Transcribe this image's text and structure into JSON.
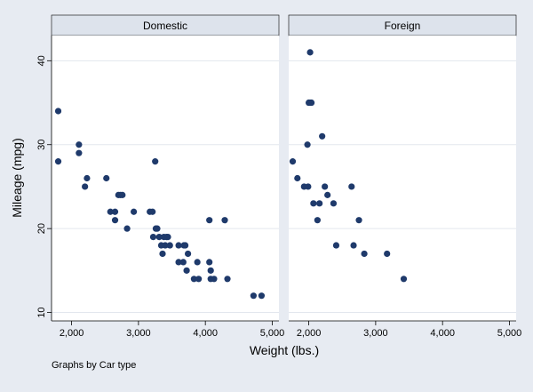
{
  "chart_data": {
    "type": "scatter",
    "xlabel": "Weight (lbs.)",
    "ylabel": "Mileage (mpg)",
    "note": "Graphs by Car type",
    "xlim": [
      1700,
      5100
    ],
    "ylim": [
      9,
      43
    ],
    "x_ticks": [
      {
        "value": 2000,
        "label": "2,000"
      },
      {
        "value": 3000,
        "label": "3,000"
      },
      {
        "value": 4000,
        "label": "4,000"
      },
      {
        "value": 5000,
        "label": "5,000"
      }
    ],
    "y_ticks": [
      {
        "value": 10,
        "label": "10"
      },
      {
        "value": 20,
        "label": "20"
      },
      {
        "value": 30,
        "label": "30"
      },
      {
        "value": 40,
        "label": "40"
      }
    ],
    "grid": true,
    "marker_color": "#1f3a6b",
    "panels": [
      {
        "title": "Domestic",
        "points": [
          [
            1800,
            34
          ],
          [
            1800,
            28
          ],
          [
            2110,
            30
          ],
          [
            2110,
            29
          ],
          [
            2200,
            25
          ],
          [
            2230,
            26
          ],
          [
            2520,
            26
          ],
          [
            2580,
            22
          ],
          [
            2650,
            22
          ],
          [
            2650,
            21
          ],
          [
            2700,
            24
          ],
          [
            2730,
            24
          ],
          [
            2760,
            24
          ],
          [
            2830,
            20
          ],
          [
            2930,
            22
          ],
          [
            3170,
            22
          ],
          [
            3210,
            22
          ],
          [
            3220,
            19
          ],
          [
            3250,
            28
          ],
          [
            3260,
            20
          ],
          [
            3280,
            20
          ],
          [
            3310,
            19
          ],
          [
            3340,
            18
          ],
          [
            3360,
            17
          ],
          [
            3380,
            19
          ],
          [
            3400,
            18
          ],
          [
            3420,
            19
          ],
          [
            3440,
            19
          ],
          [
            3470,
            18
          ],
          [
            3600,
            16
          ],
          [
            3600,
            18
          ],
          [
            3670,
            16
          ],
          [
            3680,
            18
          ],
          [
            3700,
            18
          ],
          [
            3720,
            15
          ],
          [
            3740,
            17
          ],
          [
            3830,
            14
          ],
          [
            3880,
            16
          ],
          [
            3900,
            14
          ],
          [
            4060,
            16
          ],
          [
            4060,
            21
          ],
          [
            4080,
            15
          ],
          [
            4080,
            14
          ],
          [
            4130,
            14
          ],
          [
            4290,
            21
          ],
          [
            4330,
            14
          ],
          [
            4720,
            12
          ],
          [
            4840,
            12
          ]
        ]
      },
      {
        "title": "Foreign",
        "points": [
          [
            1760,
            28
          ],
          [
            1830,
            26
          ],
          [
            1930,
            25
          ],
          [
            1980,
            30
          ],
          [
            1990,
            25
          ],
          [
            2000,
            35
          ],
          [
            2020,
            35
          ],
          [
            2020,
            41
          ],
          [
            2040,
            35
          ],
          [
            2070,
            23
          ],
          [
            2130,
            21
          ],
          [
            2160,
            23
          ],
          [
            2200,
            31
          ],
          [
            2240,
            25
          ],
          [
            2280,
            24
          ],
          [
            2370,
            23
          ],
          [
            2410,
            18
          ],
          [
            2640,
            25
          ],
          [
            2670,
            18
          ],
          [
            2750,
            21
          ],
          [
            2830,
            17
          ],
          [
            3170,
            17
          ],
          [
            3420,
            14
          ]
        ]
      }
    ]
  }
}
